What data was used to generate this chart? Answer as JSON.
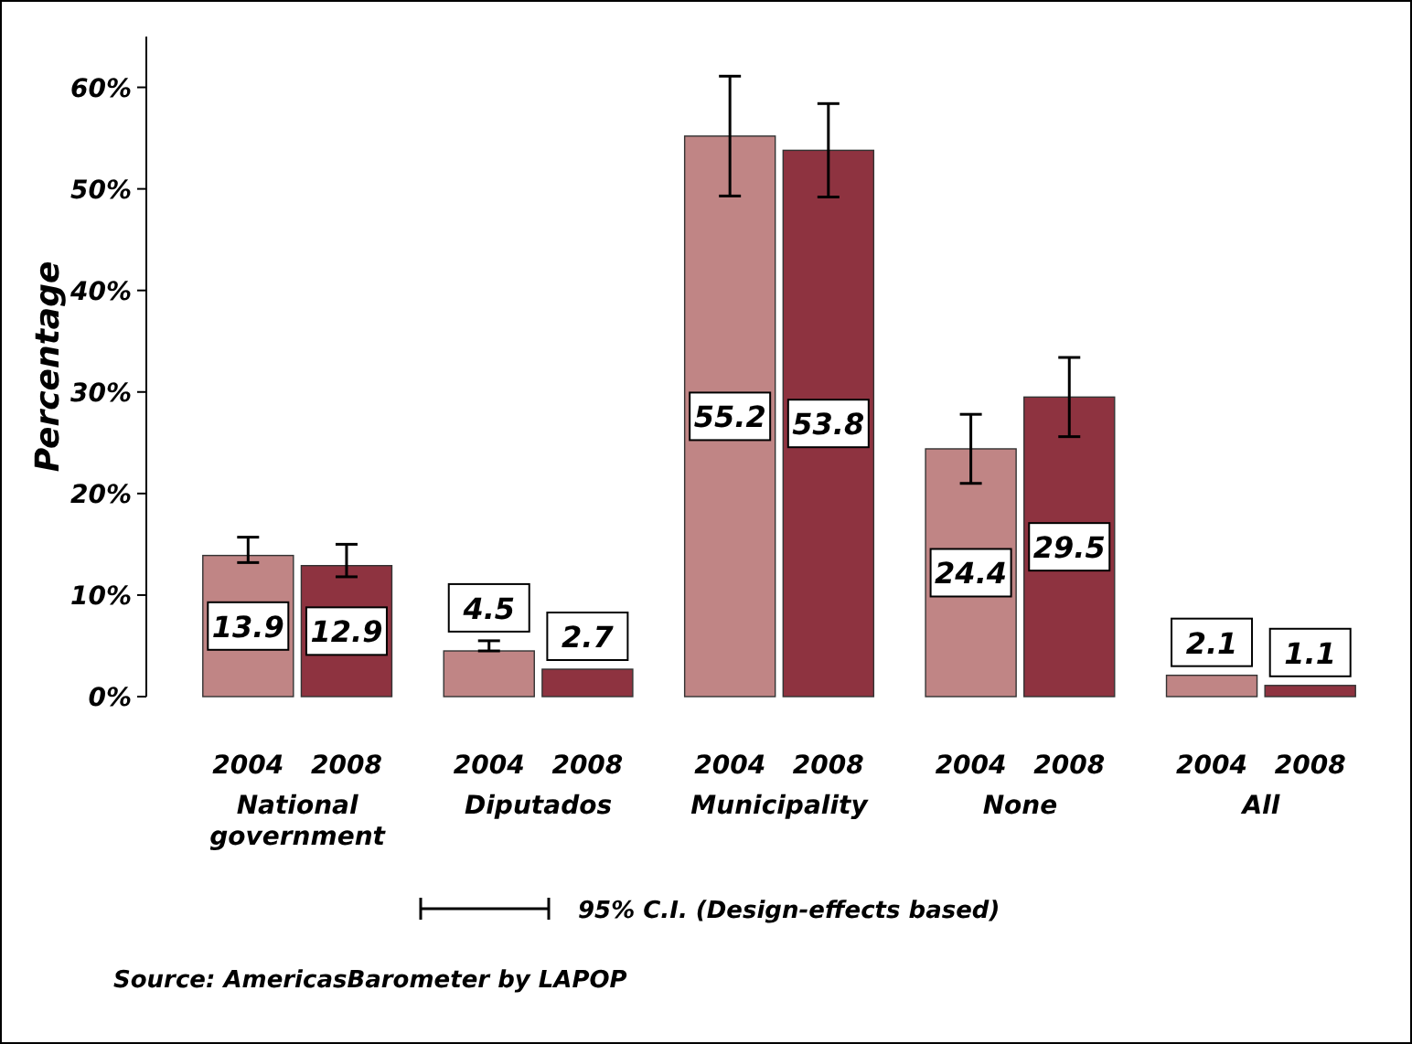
{
  "chart_data": {
    "type": "bar",
    "ylabel": "Percentage",
    "categories": [
      "National\ngovernment",
      "Diputados",
      "Municipality",
      "None",
      "All"
    ],
    "series": [
      {
        "name": "2004",
        "color": "#c08585",
        "values": [
          13.9,
          4.5,
          55.2,
          24.4,
          2.1
        ],
        "errors": [
          [
            13.2,
            15.7
          ],
          [
            4.5,
            5.5
          ],
          [
            49.3,
            61.1
          ],
          [
            21.0,
            27.8
          ],
          null
        ]
      },
      {
        "name": "2008",
        "color": "#8e3340",
        "values": [
          12.9,
          2.7,
          53.8,
          29.5,
          1.1
        ],
        "errors": [
          [
            11.8,
            15.0
          ],
          null,
          [
            49.2,
            58.4
          ],
          [
            25.6,
            33.4
          ],
          null
        ]
      }
    ],
    "ylim": [
      0,
      65
    ],
    "yticks": [
      {
        "value": 0,
        "label": "0%"
      },
      {
        "value": 10,
        "label": "10%"
      },
      {
        "value": 20,
        "label": "20%"
      },
      {
        "value": 30,
        "label": "30%"
      },
      {
        "value": 40,
        "label": "40%"
      },
      {
        "value": 50,
        "label": "50%"
      },
      {
        "value": 60,
        "label": "60%"
      }
    ],
    "data_labels": true,
    "grid": false,
    "annotations": [
      "95% C.I. (Design-effects based)",
      "Source: AmericasBarometer by LAPOP"
    ]
  }
}
